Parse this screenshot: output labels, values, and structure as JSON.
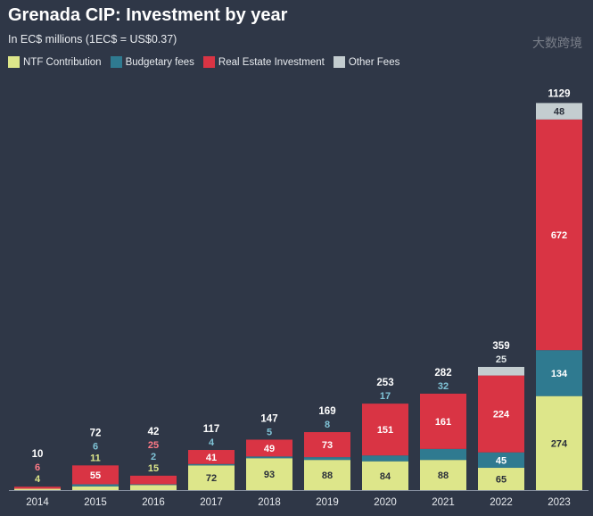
{
  "chart_data": {
    "type": "bar",
    "stacked": true,
    "title": "Grenada CIP: Investment by year",
    "subtitle": "In EC$ millions (1EC$ = US$0.37)",
    "xlabel": "",
    "ylabel": "",
    "categories": [
      "2014",
      "2015",
      "2016",
      "2017",
      "2018",
      "2019",
      "2020",
      "2021",
      "2022",
      "2023"
    ],
    "series": [
      {
        "name": "NTF Contribution",
        "color": "#dde68a",
        "values": [
          4,
          11,
          15,
          72,
          93,
          88,
          84,
          88,
          65,
          274
        ]
      },
      {
        "name": "Budgetary fees",
        "color": "#2f7a90",
        "values": [
          0,
          6,
          2,
          4,
          5,
          8,
          17,
          32,
          45,
          134
        ]
      },
      {
        "name": "Real Estate Investment",
        "color": "#d93444",
        "values": [
          6,
          55,
          25,
          41,
          49,
          73,
          151,
          161,
          224,
          672
        ]
      },
      {
        "name": "Other Fees",
        "color": "#c4cdd0",
        "values": [
          0,
          0,
          0,
          0,
          0,
          0,
          0,
          0,
          25,
          48
        ]
      }
    ],
    "totals": [
      10,
      72,
      42,
      117,
      147,
      169,
      253,
      282,
      359,
      1129
    ],
    "ylim": [
      0,
      1129
    ],
    "grid": false,
    "legend_position": "top-left"
  },
  "watermark": "大数跨境"
}
